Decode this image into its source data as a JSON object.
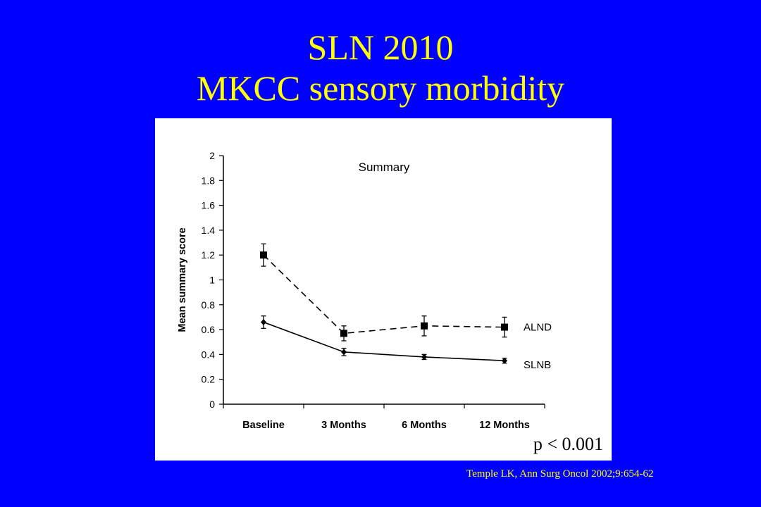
{
  "slide": {
    "title_line1": "SLN 2010",
    "title_line2": "MKCC sensory morbidity",
    "citation": "Temple LK, Ann Surg Oncol 2002;9:654-62",
    "pvalue": "p < 0.001"
  },
  "colors": {
    "background": "#0000ff",
    "title": "#ffff00",
    "panel": "#ffffff",
    "series": "#000000"
  },
  "chart_data": {
    "type": "line",
    "title": "Summary",
    "xlabel": "",
    "ylabel": "Mean summary score",
    "categories": [
      "Baseline",
      "3 Months",
      "6 Months",
      "12 Months"
    ],
    "ylim": [
      0,
      2
    ],
    "yticks": [
      "0",
      "0.2",
      "0.4",
      "0.6",
      "0.8",
      "1",
      "1.2",
      "1.4",
      "1.6",
      "1.8",
      "2"
    ],
    "grid": false,
    "series": [
      {
        "name": "ALND",
        "line_style": "dashed",
        "marker": "square",
        "values": [
          1.2,
          0.57,
          0.63,
          0.62
        ],
        "errors": [
          0.09,
          0.06,
          0.08,
          0.08
        ]
      },
      {
        "name": "SLNB",
        "line_style": "solid",
        "marker": "diamond",
        "values": [
          0.66,
          0.42,
          0.38,
          0.35
        ],
        "errors": [
          0.05,
          0.03,
          0.02,
          0.02
        ]
      }
    ]
  }
}
